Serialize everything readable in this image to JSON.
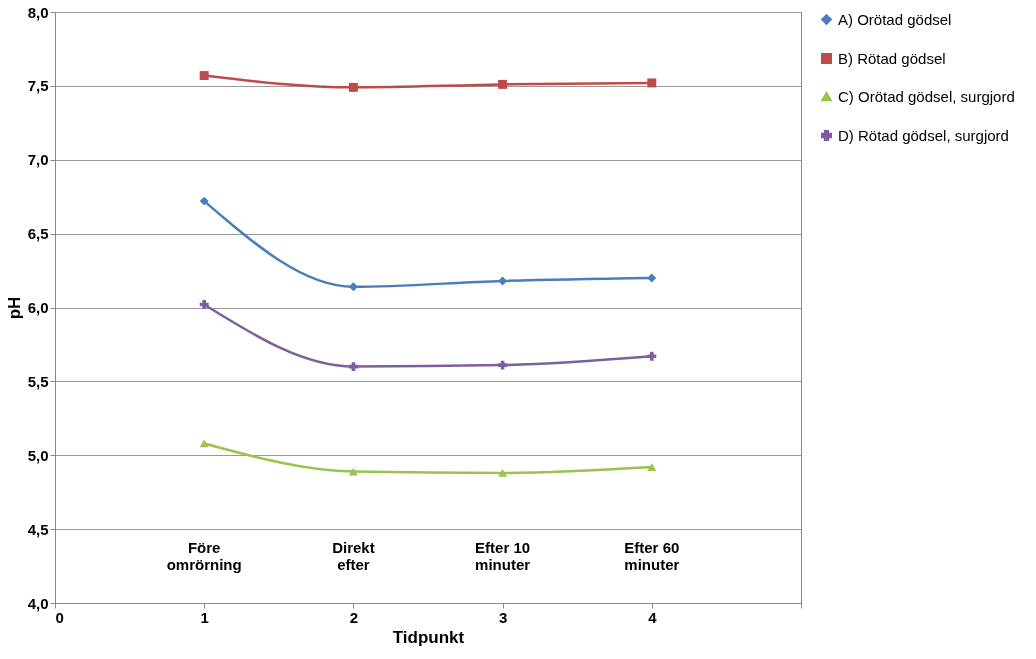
{
  "chart_data": {
    "type": "line",
    "xlabel": "Tidpunkt",
    "ylabel": "pH",
    "x": [
      1,
      2,
      3,
      4
    ],
    "series": [
      {
        "name": "A) Orötad gödsel",
        "color": "#4a7ebb",
        "marker": "diamond",
        "values": [
          6.72,
          6.14,
          6.18,
          6.2
        ]
      },
      {
        "name": "B) Rötad gödsel",
        "color": "#be4b48",
        "marker": "square",
        "values": [
          7.57,
          7.49,
          7.51,
          7.52
        ]
      },
      {
        "name": "C) Orötad gödsel, surgjord",
        "color": "#98c34f",
        "marker": "triangle",
        "values": [
          5.08,
          4.89,
          4.88,
          4.92
        ]
      },
      {
        "name": "D) Rötad gödsel, surgjord",
        "color": "#7d5fa0",
        "marker": "cross",
        "values": [
          6.02,
          5.6,
          5.61,
          5.67
        ]
      }
    ],
    "xlim": [
      0,
      5
    ],
    "xticks": [
      0,
      1,
      2,
      3,
      4,
      {
        "value": 5,
        "label": null
      }
    ],
    "ylim": [
      4,
      8
    ],
    "yticks": [
      {
        "value": 4,
        "label": "4,0"
      },
      {
        "value": 4.5,
        "label": "4,5"
      },
      {
        "value": 5,
        "label": "5,0"
      },
      {
        "value": 5.5,
        "label": "5,5"
      },
      {
        "value": 6,
        "label": "6,0"
      },
      {
        "value": 6.5,
        "label": "6,5"
      },
      {
        "value": 7,
        "label": "7,0"
      },
      {
        "value": 7.5,
        "label": "7,5"
      },
      {
        "value": 8,
        "label": "8,0"
      }
    ],
    "grid": "y",
    "legend": "right",
    "line_style": "solid",
    "annotations": [
      "Före\nomrörning",
      "Direkt\nefter",
      "Efter 10\nminuter",
      "Efter 60\nminuter"
    ]
  }
}
